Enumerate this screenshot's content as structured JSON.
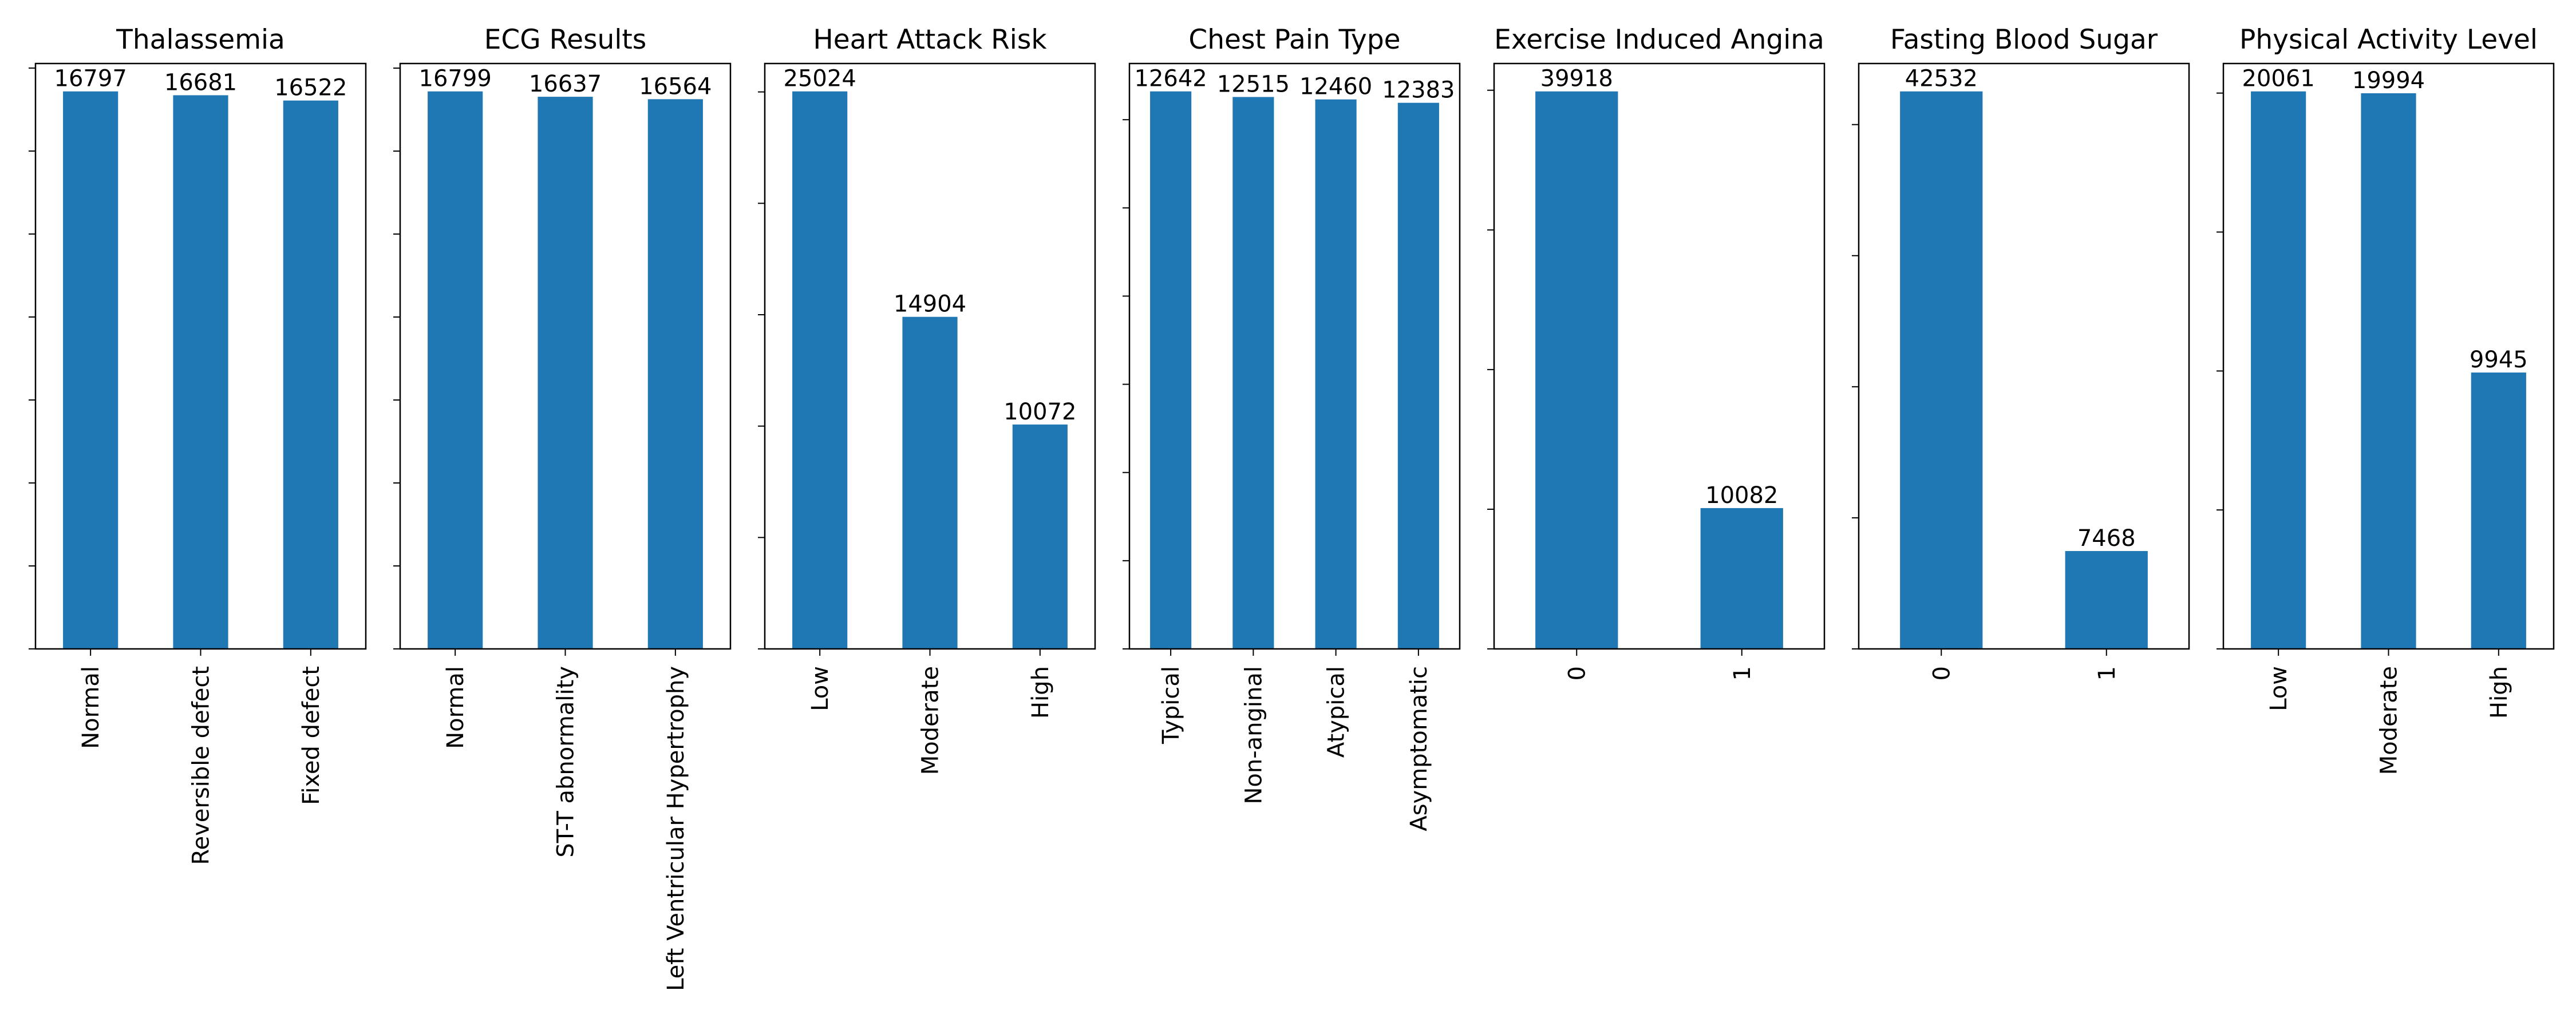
{
  "colors": {
    "bar": "#1f77b4",
    "axis": "#000000",
    "background": "#ffffff"
  },
  "chart_data": [
    {
      "type": "bar",
      "title": "Thalassemia",
      "xlabel": "",
      "ylabel": "",
      "categories": [
        "Normal",
        "Reversible defect",
        "Fixed defect"
      ],
      "values": [
        16797,
        16681,
        16522
      ],
      "ylim": [
        0,
        17637
      ]
    },
    {
      "type": "bar",
      "title": "ECG Results",
      "xlabel": "",
      "ylabel": "",
      "categories": [
        "Normal",
        "ST-T abnormality",
        "Left Ventricular Hypertrophy"
      ],
      "values": [
        16799,
        16637,
        16564
      ],
      "ylim": [
        0,
        17639
      ]
    },
    {
      "type": "bar",
      "title": "Heart Attack Risk",
      "xlabel": "",
      "ylabel": "",
      "categories": [
        "Low",
        "Moderate",
        "High"
      ],
      "values": [
        25024,
        14904,
        10072
      ],
      "ylim": [
        0,
        26275
      ]
    },
    {
      "type": "bar",
      "title": "Chest Pain Type",
      "xlabel": "",
      "ylabel": "",
      "categories": [
        "Typical",
        "Non-anginal",
        "Atypical",
        "Asymptomatic"
      ],
      "values": [
        12642,
        12515,
        12460,
        12383
      ],
      "ylim": [
        0,
        13274
      ]
    },
    {
      "type": "bar",
      "title": "Exercise Induced Angina",
      "xlabel": "",
      "ylabel": "",
      "categories": [
        "0",
        "1"
      ],
      "values": [
        39918,
        10082
      ],
      "ylim": [
        0,
        41914
      ]
    },
    {
      "type": "bar",
      "title": "Fasting Blood Sugar",
      "xlabel": "",
      "ylabel": "",
      "categories": [
        "0",
        "1"
      ],
      "values": [
        42532,
        7468
      ],
      "ylim": [
        0,
        44659
      ]
    },
    {
      "type": "bar",
      "title": "Physical Activity Level",
      "xlabel": "",
      "ylabel": "",
      "categories": [
        "Low",
        "Moderate",
        "High"
      ],
      "values": [
        20061,
        19994,
        9945
      ],
      "ylim": [
        0,
        21064
      ]
    }
  ]
}
